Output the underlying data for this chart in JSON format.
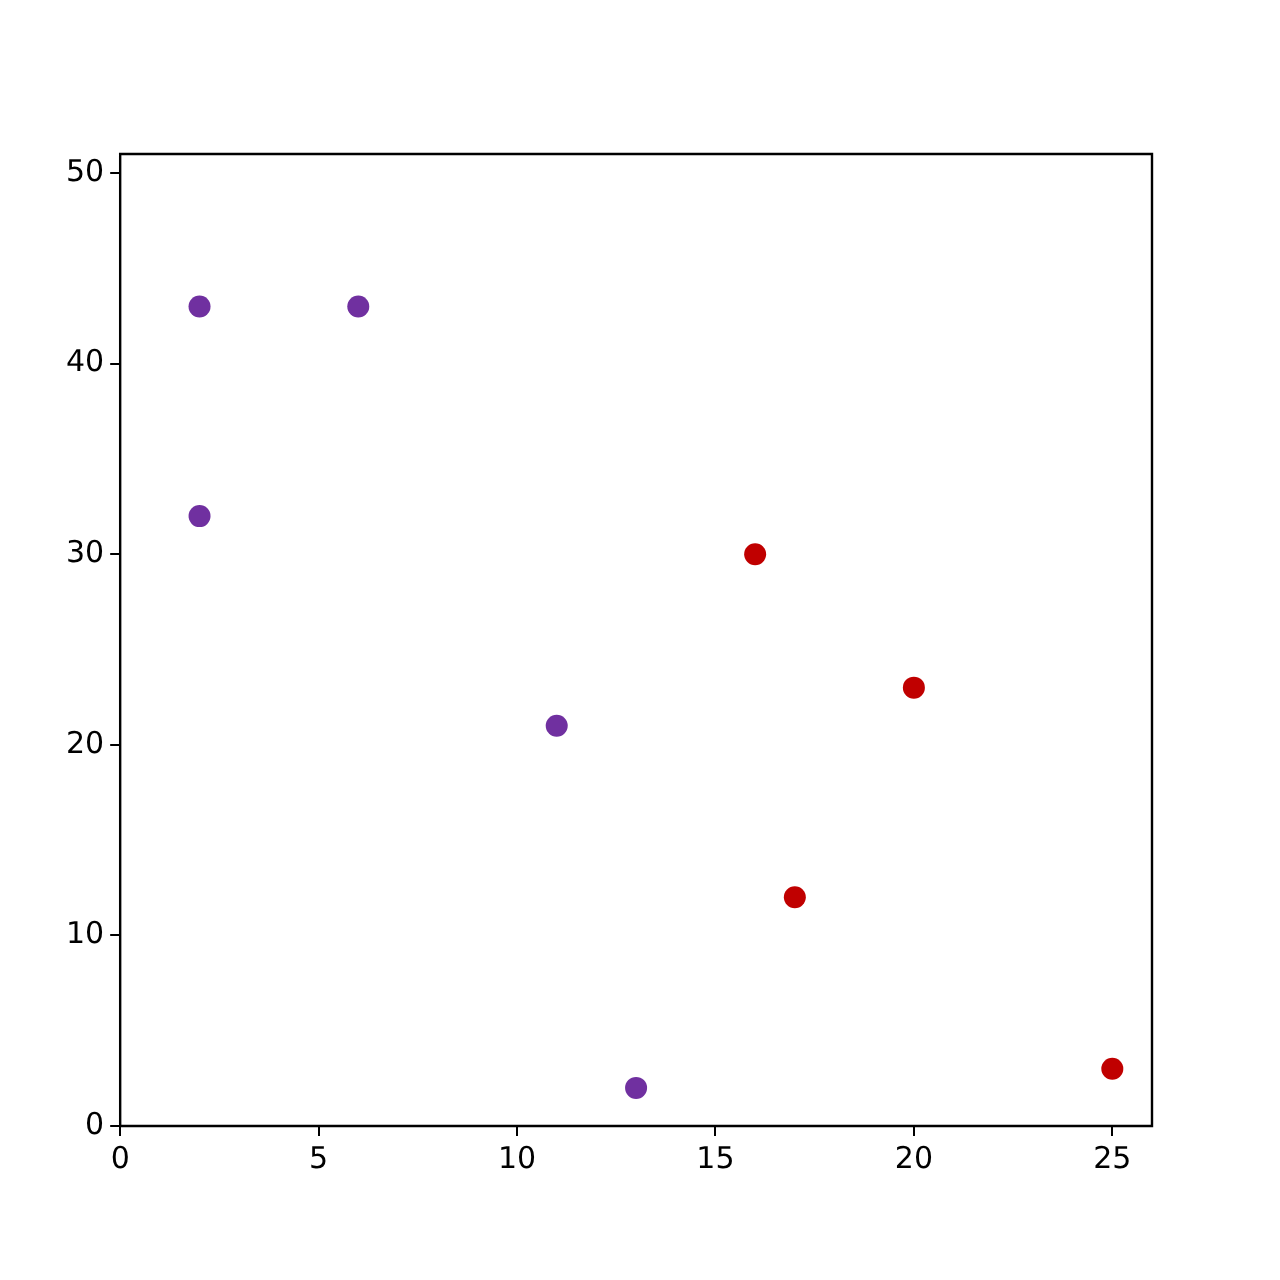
{
  "chart_data": {
    "type": "scatter",
    "xlim": [
      0,
      26
    ],
    "ylim": [
      0,
      51
    ],
    "xticks": [
      0,
      5,
      10,
      15,
      20,
      25
    ],
    "yticks": [
      0,
      10,
      20,
      30,
      40,
      50
    ],
    "grid": false,
    "legend": false,
    "marker": "circle",
    "series": [
      {
        "color": "#7030a0",
        "x": [
          2,
          6,
          2,
          11,
          13
        ],
        "values": [
          43,
          43,
          32,
          21,
          2
        ]
      },
      {
        "color": "#c00000",
        "x": [
          16,
          20,
          17,
          25
        ],
        "values": [
          30,
          23,
          12,
          3
        ]
      }
    ]
  }
}
